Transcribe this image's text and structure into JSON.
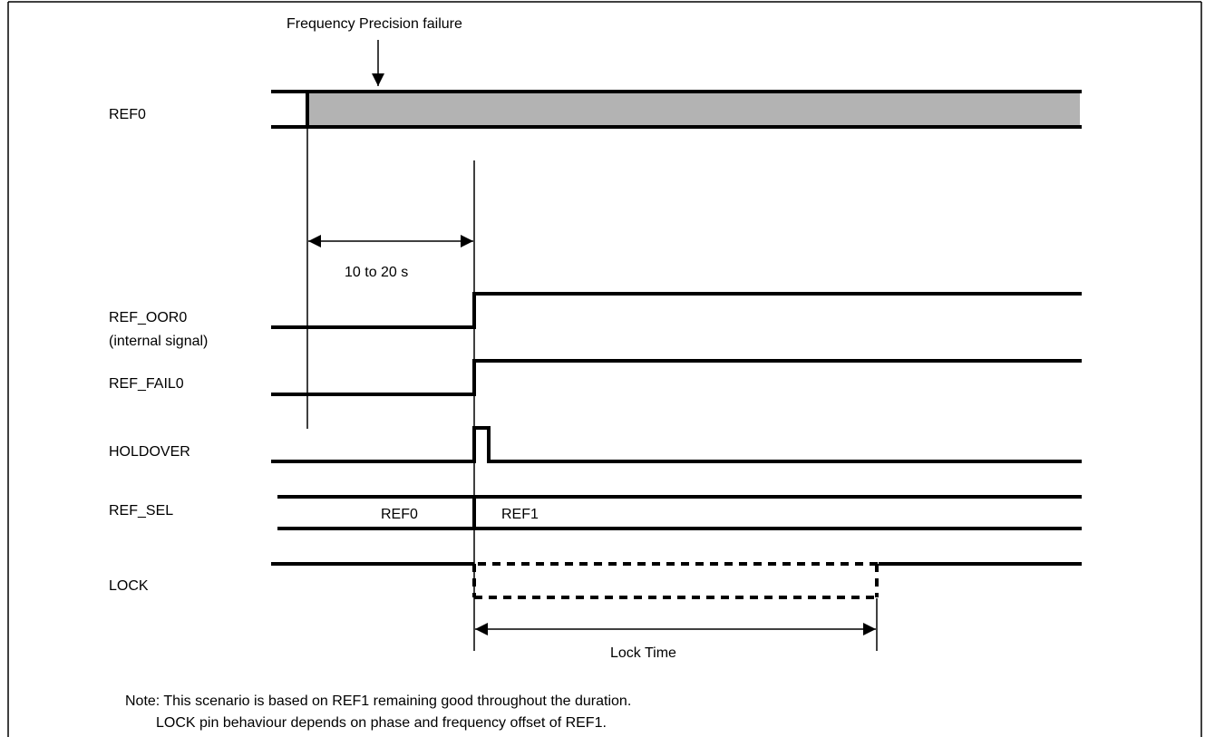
{
  "annotation": "Frequency Precision failure",
  "signals": {
    "ref0": "REF0",
    "ref_oor0": "REF_OOR0",
    "ref_oor0_note": "(internal signal)",
    "ref_fail0": "REF_FAIL0",
    "holdover": "HOLDOVER",
    "ref_sel": "REF_SEL",
    "lock": "LOCK"
  },
  "bus_values": {
    "before": "REF0",
    "after": "REF1"
  },
  "timing": {
    "detect_delay": "10 to 20 s",
    "lock_time": "Lock Time"
  },
  "notes": {
    "line1": "Note: This scenario is based on REF1 remaining good throughout the duration.",
    "line2": "LOCK pin behaviour depends on phase and frequency offset of REF1."
  },
  "colors": {
    "line": "#000000",
    "ref0_fill": "#b3b3b3"
  }
}
